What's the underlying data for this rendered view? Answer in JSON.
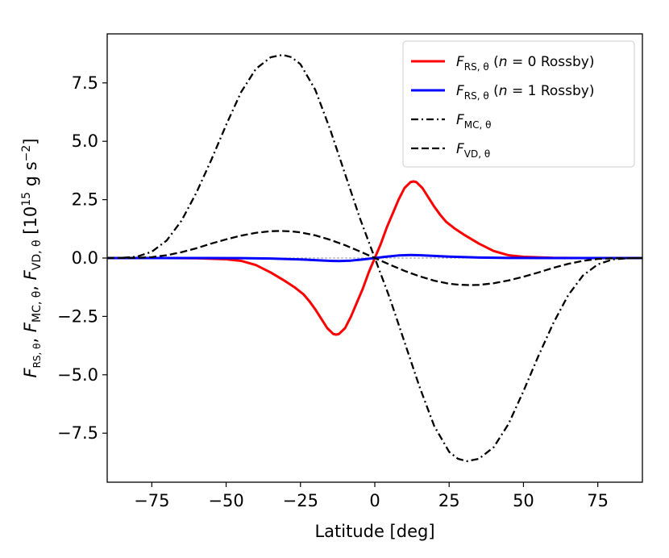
{
  "chart_data": {
    "type": "line",
    "xlabel": "Latitude [deg]",
    "ylabel": {
      "prefix": "F",
      "parts": [
        {
          "base": "F",
          "sub": "RS, θ"
        },
        {
          "base": "F",
          "sub": "MC, θ"
        },
        {
          "base": "F",
          "sub": "VD, θ"
        }
      ],
      "units": "[10",
      "units_exp": "15",
      "units_tail": " g s",
      "units_exp2": "−2",
      "units_close": "]"
    },
    "xlim": [
      -90,
      90
    ],
    "ylim": [
      -9.6,
      9.6
    ],
    "x_ticks": [
      -75,
      -50,
      -25,
      0,
      25,
      50,
      75
    ],
    "x_tick_labels": [
      "−75",
      "−50",
      "−25",
      "0",
      "25",
      "50",
      "75"
    ],
    "y_ticks": [
      7.5,
      5.0,
      2.5,
      0.0,
      -2.5,
      -5.0,
      -7.5
    ],
    "y_tick_labels": [
      "7.5",
      "5.0",
      "2.5",
      "0.0",
      "−2.5",
      "−5.0",
      "−7.5"
    ],
    "legend_position": "top-right",
    "zero_line": true,
    "series": [
      {
        "name": "RS n0",
        "legend_base": "F",
        "legend_sub": "RS, θ",
        "legend_tail": " (",
        "legend_n": "n",
        "legend_rest": " = 0 Rossby)",
        "color": "#ff0000",
        "dash": "solid",
        "x": [
          -90,
          -80,
          -70,
          -60,
          -50,
          -45,
          -40,
          -35,
          -30,
          -27,
          -24,
          -22,
          -20,
          -18,
          -16,
          -14,
          -13,
          -12,
          -10,
          -8,
          -6,
          -4,
          -2,
          0,
          2,
          4,
          6,
          8,
          10,
          12,
          13,
          14,
          16,
          18,
          20,
          22,
          24,
          27,
          30,
          35,
          40,
          45,
          50,
          60,
          70,
          80,
          90
        ],
        "y": [
          0,
          0,
          0,
          -0.01,
          -0.05,
          -0.12,
          -0.3,
          -0.62,
          -1.0,
          -1.25,
          -1.55,
          -1.85,
          -2.2,
          -2.6,
          -3.0,
          -3.25,
          -3.28,
          -3.25,
          -3.0,
          -2.5,
          -1.9,
          -1.3,
          -0.6,
          0,
          0.6,
          1.3,
          1.9,
          2.5,
          3.0,
          3.25,
          3.28,
          3.25,
          3.0,
          2.6,
          2.2,
          1.85,
          1.55,
          1.25,
          1.0,
          0.62,
          0.3,
          0.12,
          0.05,
          0.01,
          0,
          0,
          0
        ]
      },
      {
        "name": "RS n1",
        "legend_base": "F",
        "legend_sub": "RS, θ",
        "legend_tail": " (",
        "legend_n": "n",
        "legend_rest": " = 1 Rossby)",
        "color": "#0000ff",
        "dash": "solid",
        "x": [
          -90,
          -60,
          -45,
          -35,
          -25,
          -20,
          -15,
          -12,
          -8,
          -4,
          0,
          4,
          8,
          12,
          15,
          20,
          25,
          35,
          45,
          60,
          90
        ],
        "y": [
          0,
          0,
          -0.005,
          -0.02,
          -0.06,
          -0.09,
          -0.12,
          -0.13,
          -0.11,
          -0.06,
          0,
          0.06,
          0.11,
          0.13,
          0.12,
          0.09,
          0.06,
          0.02,
          0.005,
          0,
          0
        ]
      },
      {
        "name": "MC",
        "legend_base": "F",
        "legend_sub": "MC, θ",
        "legend_tail": "",
        "legend_n": "",
        "legend_rest": "",
        "color": "#000000",
        "dash": "dashdot",
        "x": [
          -90,
          -85,
          -80,
          -75,
          -70,
          -65,
          -60,
          -55,
          -50,
          -45,
          -40,
          -35,
          -31,
          -28,
          -25,
          -20,
          -15,
          -10,
          -5,
          0,
          5,
          10,
          15,
          20,
          25,
          28,
          31,
          35,
          40,
          45,
          50,
          55,
          60,
          65,
          70,
          75,
          80,
          85,
          90
        ],
        "y": [
          0,
          0.01,
          0.06,
          0.27,
          0.75,
          1.6,
          2.8,
          4.2,
          5.7,
          7.1,
          8.1,
          8.6,
          8.7,
          8.6,
          8.3,
          7.2,
          5.5,
          3.6,
          1.7,
          0,
          -1.7,
          -3.6,
          -5.5,
          -7.2,
          -8.3,
          -8.6,
          -8.7,
          -8.6,
          -8.1,
          -7.1,
          -5.7,
          -4.2,
          -2.8,
          -1.6,
          -0.75,
          -0.27,
          -0.06,
          -0.01,
          0
        ]
      },
      {
        "name": "VD",
        "legend_base": "F",
        "legend_sub": "VD, θ",
        "legend_tail": "",
        "legend_n": "",
        "legend_rest": "",
        "color": "#000000",
        "dash": "dashed",
        "x": [
          -90,
          -80,
          -75,
          -70,
          -65,
          -60,
          -55,
          -50,
          -45,
          -40,
          -35,
          -32,
          -28,
          -25,
          -20,
          -15,
          -10,
          -5,
          0,
          5,
          10,
          15,
          20,
          25,
          28,
          32,
          35,
          40,
          45,
          50,
          55,
          60,
          65,
          70,
          75,
          80,
          90
        ],
        "y": [
          0,
          0.01,
          0.04,
          0.12,
          0.25,
          0.42,
          0.62,
          0.8,
          0.96,
          1.08,
          1.15,
          1.16,
          1.14,
          1.1,
          0.97,
          0.78,
          0.55,
          0.28,
          0,
          -0.28,
          -0.55,
          -0.78,
          -0.97,
          -1.1,
          -1.14,
          -1.16,
          -1.15,
          -1.08,
          -0.96,
          -0.8,
          -0.62,
          -0.42,
          -0.25,
          -0.12,
          -0.04,
          -0.01,
          0
        ]
      }
    ]
  }
}
